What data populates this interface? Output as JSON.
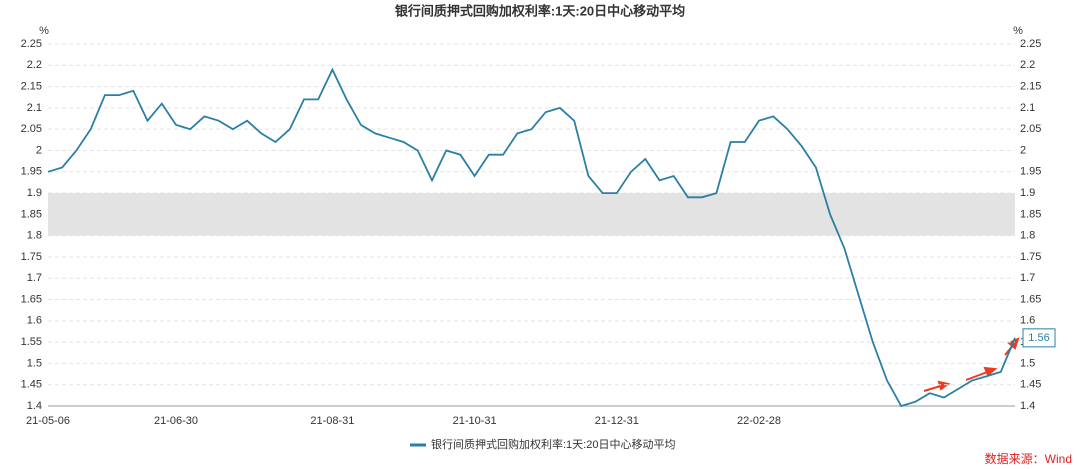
{
  "chart_data": {
    "type": "line",
    "title": "银行间质押式回购加权利率:1天:20日中心移动平均",
    "y_unit": "%",
    "y2_unit": "%",
    "source": "数据来源：Wind",
    "categories": [
      "21-05-06",
      null,
      null,
      null,
      null,
      null,
      null,
      null,
      null,
      "21-06-30",
      null,
      null,
      null,
      null,
      null,
      null,
      null,
      null,
      null,
      null,
      "21-08-31",
      null,
      null,
      null,
      null,
      null,
      null,
      null,
      null,
      null,
      "21-10-31",
      null,
      null,
      null,
      null,
      null,
      null,
      null,
      null,
      null,
      "21-12-31",
      null,
      null,
      null,
      null,
      null,
      null,
      null,
      null,
      null,
      "22-02-28",
      null,
      null,
      null,
      null,
      null,
      null,
      null,
      null,
      null,
      null,
      null,
      null,
      null,
      null,
      null,
      null,
      null,
      null
    ],
    "series": [
      {
        "name": "银行间质押式回购加权利率:1天:20日中心移动平均",
        "color": "#2b7fa6",
        "values": [
          1.95,
          1.96,
          2.0,
          2.05,
          2.13,
          2.13,
          2.14,
          2.07,
          2.11,
          2.06,
          2.05,
          2.08,
          2.07,
          2.05,
          2.07,
          2.04,
          2.02,
          2.05,
          2.12,
          2.12,
          2.19,
          2.12,
          2.06,
          2.04,
          2.03,
          2.02,
          2.0,
          1.93,
          2.0,
          1.99,
          1.94,
          1.99,
          1.99,
          2.04,
          2.05,
          2.09,
          2.1,
          2.07,
          1.94,
          1.9,
          1.9,
          1.95,
          1.98,
          1.93,
          1.94,
          1.89,
          1.89,
          1.9,
          2.02,
          2.02,
          2.07,
          2.08,
          2.05,
          2.01,
          1.96,
          1.85,
          1.77,
          1.66,
          1.55,
          1.46,
          1.4,
          1.41,
          1.43,
          1.42,
          1.44,
          1.46,
          1.47,
          1.48,
          1.56
        ]
      }
    ],
    "ylim": [
      1.4,
      2.25
    ],
    "yticks": [
      1.4,
      1.45,
      1.5,
      1.55,
      1.6,
      1.65,
      1.7,
      1.75,
      1.8,
      1.85,
      1.9,
      1.95,
      2,
      2.05,
      2.1,
      2.15,
      2.2,
      2.25
    ],
    "y2lim": [
      1.4,
      2.25
    ],
    "y2ticks": [
      1.4,
      1.45,
      1.5,
      1.55,
      1.6,
      1.65,
      1.7,
      1.75,
      1.8,
      1.85,
      1.9,
      1.95,
      2,
      2.05,
      2.1,
      2.15,
      2.2,
      2.25
    ],
    "shaded_range": [
      1.8,
      1.9
    ],
    "grid": true
  }
}
